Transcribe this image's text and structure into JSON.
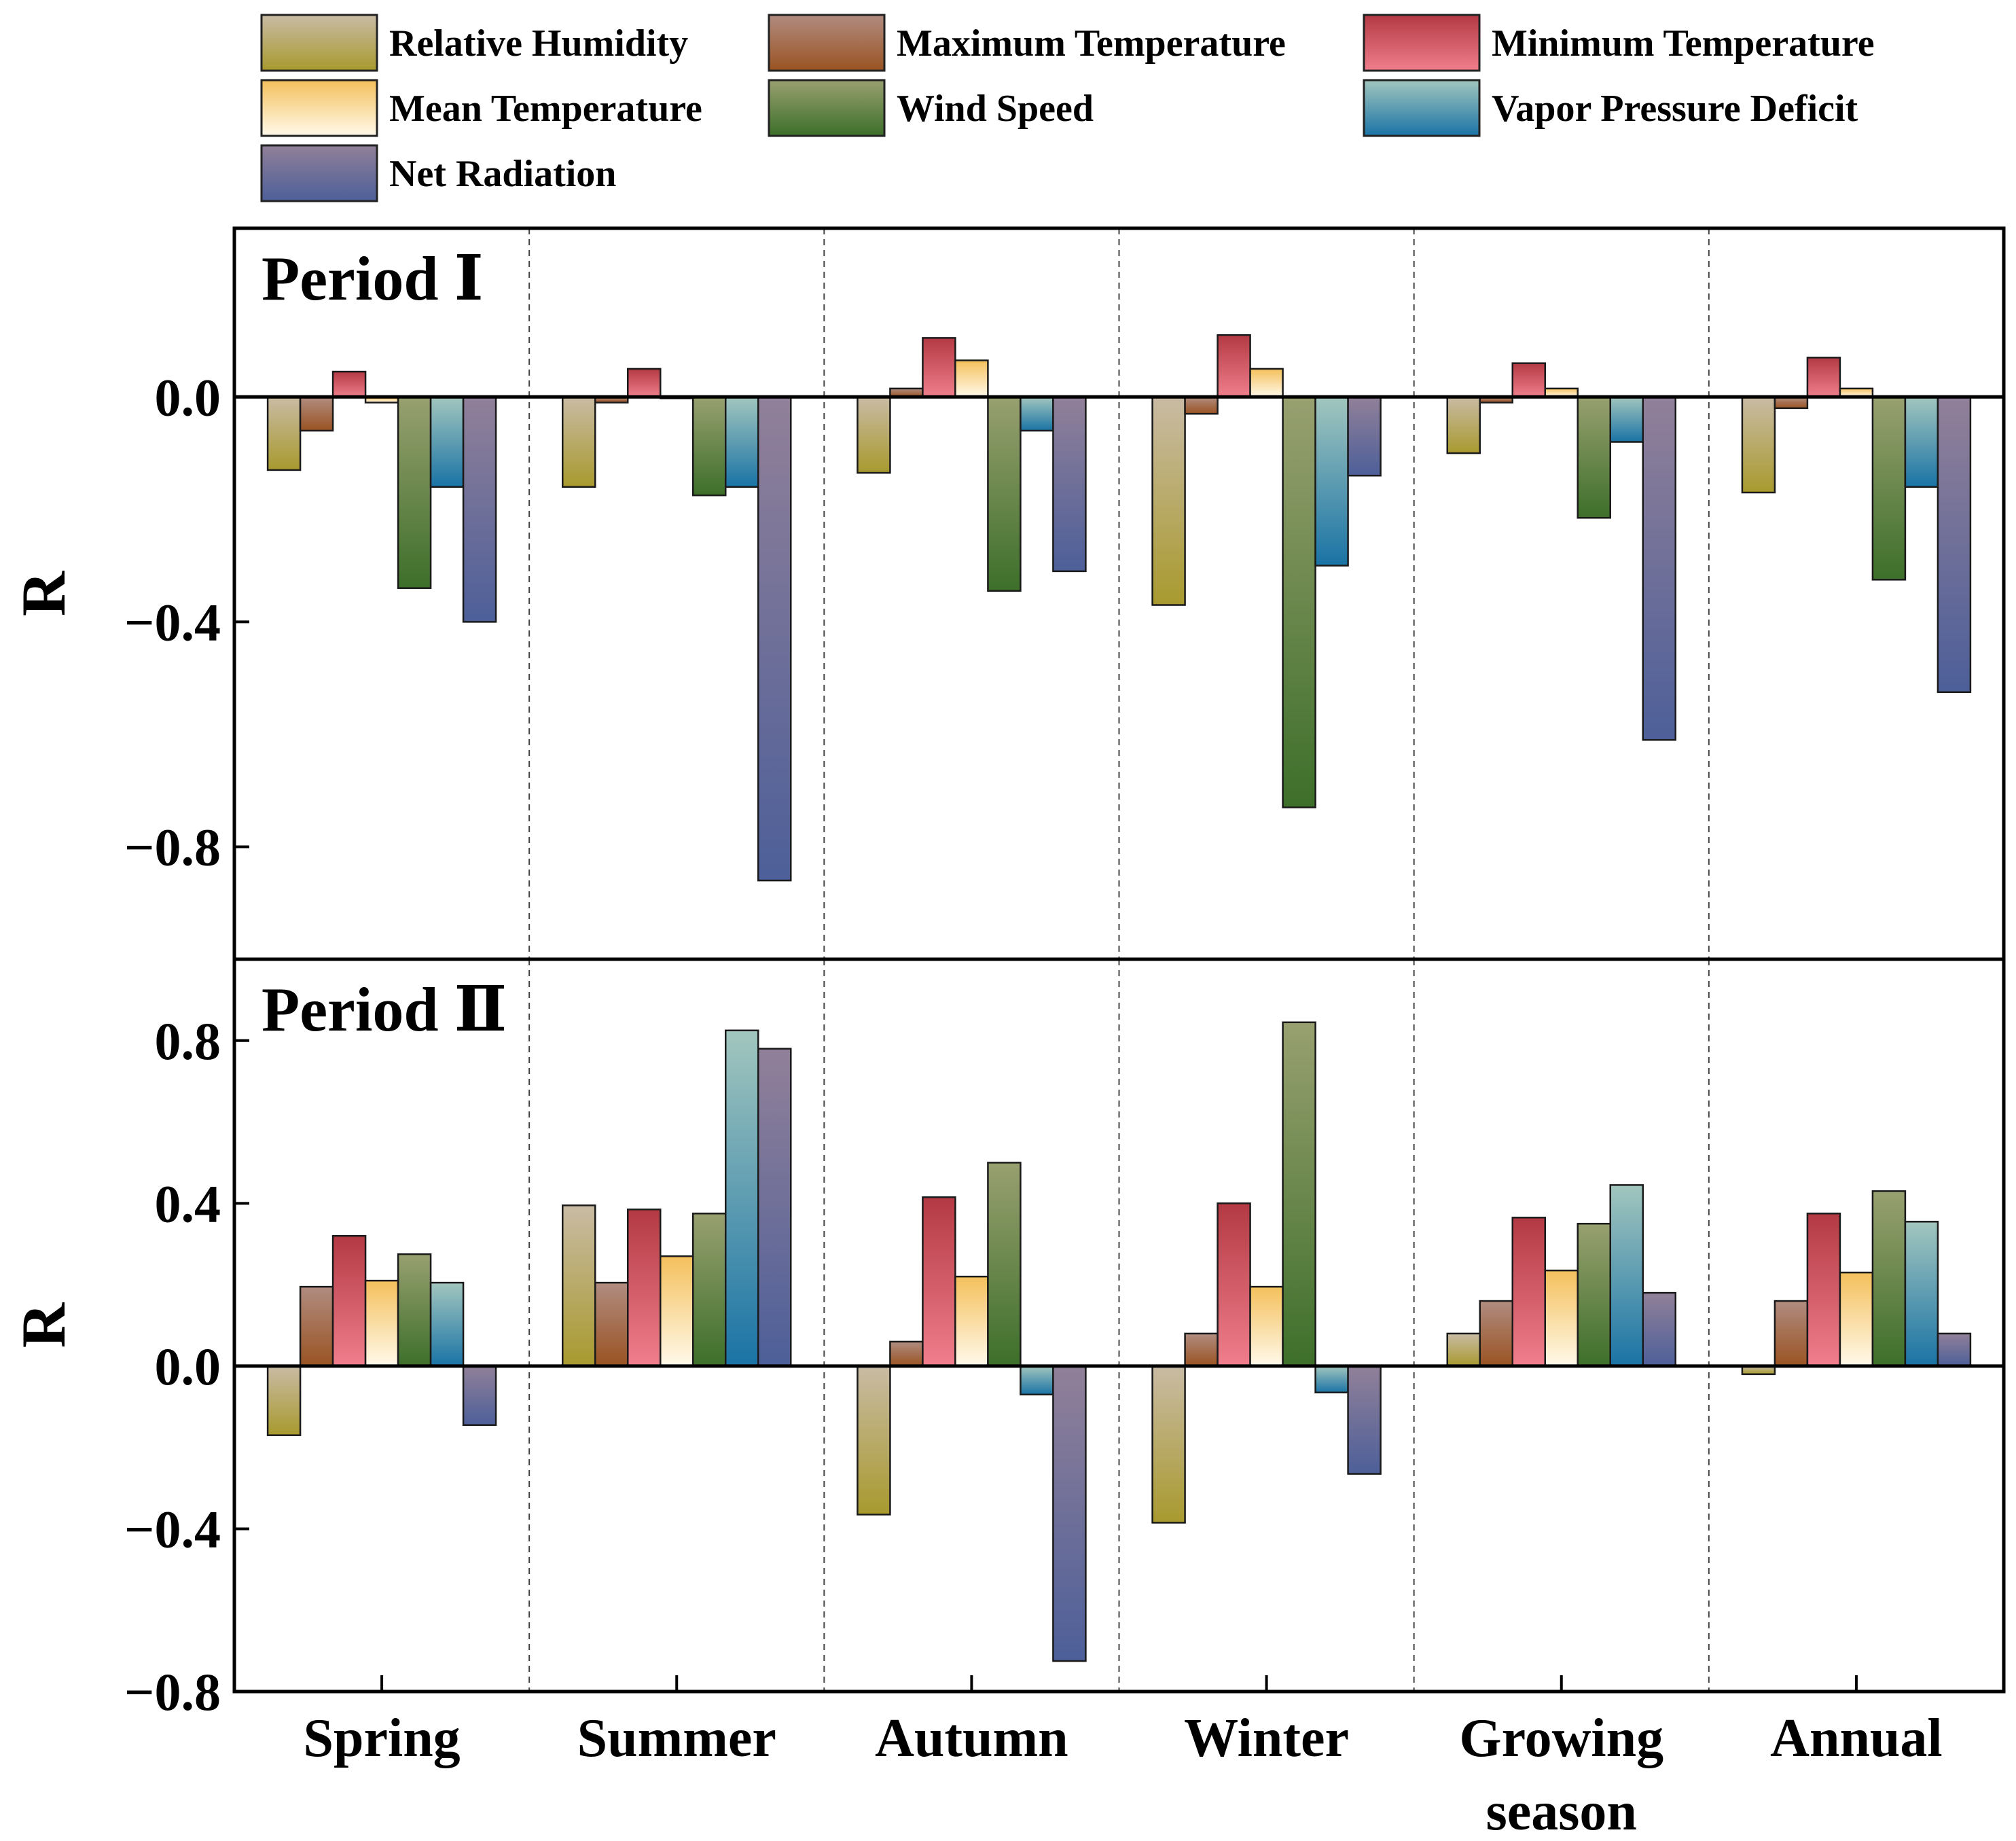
{
  "chart_data": {
    "type": "bar",
    "categories": [
      "Spring",
      "Summer",
      "Autumn",
      "Winter",
      "Growing season",
      "Annual"
    ],
    "category_lines": [
      [
        "Spring"
      ],
      [
        "Summer"
      ],
      [
        "Autumn"
      ],
      [
        "Winter"
      ],
      [
        "Growing",
        "season"
      ],
      [
        "Annual"
      ]
    ],
    "legend": [
      {
        "name": "Relative Humidity",
        "colors": [
          "#c9bba4",
          "#a89a2e"
        ]
      },
      {
        "name": "Maximum Temperature",
        "colors": [
          "#b08c80",
          "#9a5322"
        ]
      },
      {
        "name": "Minimum Temperature",
        "colors": [
          "#b33a44",
          "#f07e8c"
        ]
      },
      {
        "name": "Mean Temperature",
        "colors": [
          "#f4c05c",
          "#fff9ea"
        ]
      },
      {
        "name": "Wind Speed",
        "colors": [
          "#98a070",
          "#3d6f2a"
        ]
      },
      {
        "name": "Vapor Pressure Deficit",
        "colors": [
          "#a2c6be",
          "#1a73a5"
        ]
      },
      {
        "name": "Net Radiation",
        "colors": [
          "#918099",
          "#4d5f99"
        ]
      }
    ],
    "panels": [
      {
        "title": "Period Ⅰ",
        "ylabel": "R",
        "ylim": [
          -1.0,
          0.3
        ],
        "yticks": [
          0.0,
          -0.4,
          -0.8
        ],
        "ytick_labels": [
          "0.0",
          "−0.4",
          "−0.8"
        ],
        "series": [
          {
            "name": "Relative Humidity",
            "values": [
              -0.13,
              -0.16,
              -0.135,
              -0.37,
              -0.1,
              -0.17
            ]
          },
          {
            "name": "Maximum Temperature",
            "values": [
              -0.06,
              -0.01,
              0.015,
              -0.03,
              -0.01,
              -0.02
            ]
          },
          {
            "name": "Minimum Temperature",
            "values": [
              0.045,
              0.05,
              0.105,
              0.11,
              0.06,
              0.07
            ]
          },
          {
            "name": "Mean Temperature",
            "values": [
              -0.01,
              0.0,
              0.065,
              0.05,
              0.015,
              0.015
            ]
          },
          {
            "name": "Wind Speed",
            "values": [
              -0.34,
              -0.175,
              -0.345,
              -0.73,
              -0.215,
              -0.325
            ]
          },
          {
            "name": "Vapor Pressure Deficit",
            "values": [
              -0.16,
              -0.16,
              -0.06,
              -0.3,
              -0.08,
              -0.16
            ]
          },
          {
            "name": "Net Radiation",
            "values": [
              -0.4,
              -0.86,
              -0.31,
              -0.14,
              -0.61,
              -0.525
            ]
          }
        ]
      },
      {
        "title": "Period Ⅱ",
        "ylabel": "R",
        "ylim": [
          -0.8,
          1.0
        ],
        "yticks": [
          0.8,
          0.4,
          0.0,
          -0.4,
          -0.8
        ],
        "ytick_labels": [
          "0.8",
          "0.4",
          "0.0",
          "−0.4",
          "−0.8"
        ],
        "series": [
          {
            "name": "Relative Humidity",
            "values": [
              -0.17,
              0.395,
              -0.365,
              -0.385,
              0.08,
              -0.02
            ]
          },
          {
            "name": "Maximum Temperature",
            "values": [
              0.195,
              0.205,
              0.06,
              0.08,
              0.16,
              0.16
            ]
          },
          {
            "name": "Minimum Temperature",
            "values": [
              0.32,
              0.385,
              0.415,
              0.4,
              0.365,
              0.375
            ]
          },
          {
            "name": "Mean Temperature",
            "values": [
              0.21,
              0.27,
              0.22,
              0.195,
              0.235,
              0.23
            ]
          },
          {
            "name": "Wind Speed",
            "values": [
              0.275,
              0.375,
              0.5,
              0.845,
              0.35,
              0.43
            ]
          },
          {
            "name": "Vapor Pressure Deficit",
            "values": [
              0.205,
              0.825,
              -0.07,
              -0.065,
              0.445,
              0.355
            ]
          },
          {
            "name": "Net Radiation",
            "values": [
              -0.145,
              0.78,
              -0.725,
              -0.265,
              0.18,
              0.08
            ]
          }
        ]
      }
    ]
  }
}
